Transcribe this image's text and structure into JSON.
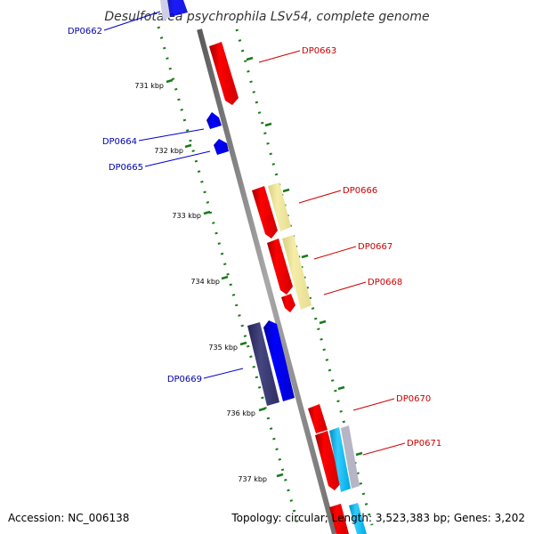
{
  "title": "Desulfotalea psychrophila LSv54, complete genome",
  "footer": {
    "accession": "Accession: NC_006138",
    "summary": "Topology: circular; Length: 3,523,383 bp; Genes: 3,202"
  },
  "kbp_labels": [
    "731 kbp",
    "732 kbp",
    "733 kbp",
    "734 kbp",
    "735 kbp",
    "736 kbp",
    "737 kbp"
  ],
  "genes": [
    {
      "name": "DP0662",
      "strand": "reverse"
    },
    {
      "name": "DP0663",
      "strand": "forward"
    },
    {
      "name": "DP0664",
      "strand": "reverse"
    },
    {
      "name": "DP0665",
      "strand": "reverse"
    },
    {
      "name": "DP0666",
      "strand": "forward"
    },
    {
      "name": "DP0667",
      "strand": "forward"
    },
    {
      "name": "DP0668",
      "strand": "forward"
    },
    {
      "name": "DP0669",
      "strand": "reverse"
    },
    {
      "name": "DP0670",
      "strand": "forward"
    },
    {
      "name": "DP0671",
      "strand": "forward"
    }
  ],
  "colors": {
    "forward_cds": "#ee0000",
    "reverse_cds": "#0000ee",
    "reverse_dark": "#3a3a7a",
    "pale_yellow": "#f0e68c",
    "cyan": "#00bfff",
    "backbone": "#808080",
    "tick": "#1a7a1a",
    "label_forward": "#cc0000",
    "label_reverse": "#0000aa"
  }
}
